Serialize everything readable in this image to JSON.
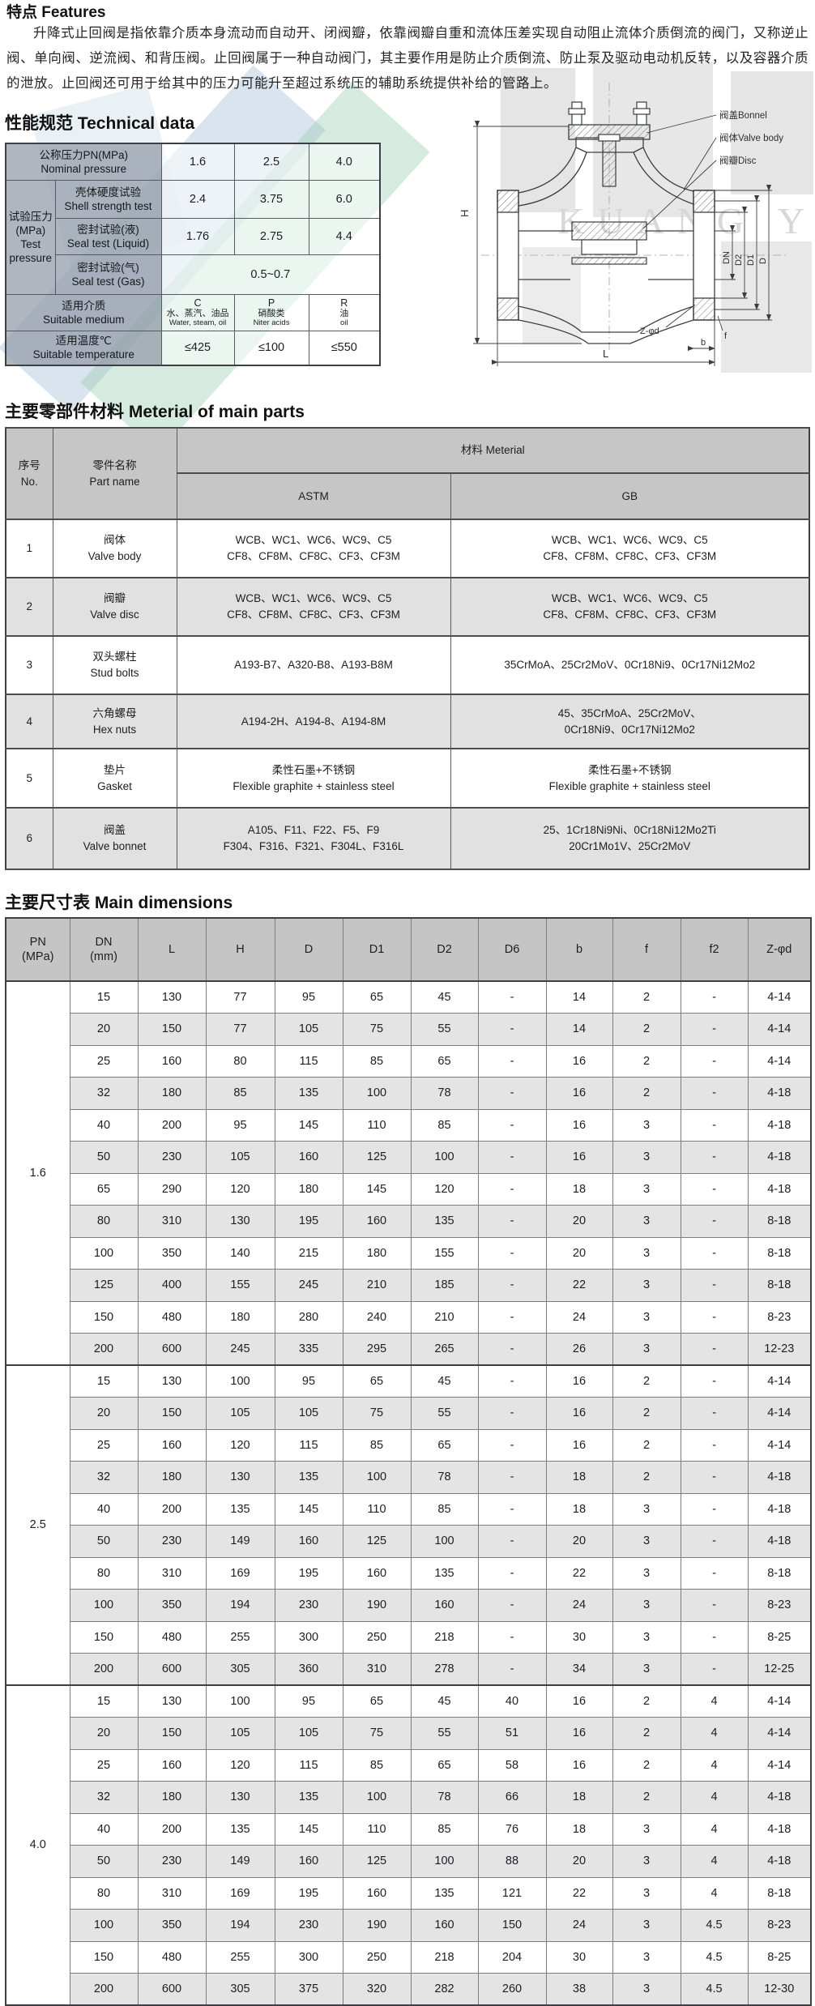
{
  "features": {
    "title": "特点 Features",
    "paragraph": "升降式止回阀是指依靠介质本身流动而自动开、闭阀瓣，依靠阀瓣自重和流体压差实现自动阻止流体介质倒流的阀门，又称逆止阀、单向阀、逆流阀、和背压阀。止回阀属于一种自动阀门，其主要作用是防止介质倒流、防止泵及驱动电动机反转，以及容器介质的泄放。止回阀还可用于给其中的压力可能升至超过系统压的辅助系统提供补给的管路上。"
  },
  "technical": {
    "title": "性能规范 Technical data",
    "nominal": {
      "label": "公称压力PN(MPa)\nNominal pressure",
      "values": [
        "1.6",
        "2.5",
        "4.0"
      ]
    },
    "test_group": {
      "label": "试验压力\n(MPa)\nTest\npressure"
    },
    "shell": {
      "label": "壳体硬度试验\nShell strength test",
      "values": [
        "2.4",
        "3.75",
        "6.0"
      ]
    },
    "liquid": {
      "label": "密封试验(液)\nSeal test (Liquid)",
      "values": [
        "1.76",
        "2.75",
        "4.4"
      ]
    },
    "gas": {
      "label": "密封试验(气)\nSeal test (Gas)",
      "value": "0.5~0.7"
    },
    "medium": {
      "label": "适用介质\nSuitable medium",
      "values": [
        {
          "code": "C",
          "zh": "水、蒸汽、油品",
          "en": "Water, steam, oil"
        },
        {
          "code": "P",
          "zh": "硝酸类",
          "en": "Niter acids"
        },
        {
          "code": "R",
          "zh": "油",
          "en": "oil"
        }
      ]
    },
    "temperature": {
      "label": "适用温度℃\nSuitable temperature",
      "values": [
        "≤425",
        "≤100",
        "≤550"
      ]
    }
  },
  "drawing": {
    "labels": {
      "bonnet": "阀盖Bonnel",
      "body": "阀体Valve body",
      "disc": "阀瓣Disc",
      "h": "H",
      "l": "L",
      "b": "b",
      "f": "f",
      "zd": "Z-φd",
      "dn": "DN",
      "d2": "D2",
      "d1": "D1",
      "d": "D"
    }
  },
  "watermark": {
    "text": "KUANG YI"
  },
  "parts": {
    "title": "主要零部件材料  Meterial of main parts",
    "headers": {
      "no": "序号\nNo.",
      "part": "零件名称\nPart name",
      "material": "材料 Meterial",
      "astm": "ASTM",
      "gb": "GB"
    },
    "rows": [
      {
        "no": "1",
        "part": [
          "阀体",
          "Valve body"
        ],
        "astm": [
          "WCB、WC1、WC6、WC9、C5",
          "CF8、CF8M、CF8C、CF3、CF3M"
        ],
        "gb": [
          "WCB、WC1、WC6、WC9、C5",
          "CF8、CF8M、CF8C、CF3、CF3M"
        ]
      },
      {
        "no": "2",
        "part": [
          "阀瓣",
          "Valve disc"
        ],
        "astm": [
          "WCB、WC1、WC6、WC9、C5",
          "CF8、CF8M、CF8C、CF3、CF3M"
        ],
        "gb": [
          "WCB、WC1、WC6、WC9、C5",
          "CF8、CF8M、CF8C、CF3、CF3M"
        ]
      },
      {
        "no": "3",
        "part": [
          "双头螺柱",
          "Stud bolts"
        ],
        "astm": [
          "A193-B7、A320-B8、A193-B8M"
        ],
        "gb": [
          "35CrMoA、25Cr2MoV、0Cr18Ni9、0Cr17Ni12Mo2"
        ]
      },
      {
        "no": "4",
        "part": [
          "六角螺母",
          "Hex nuts"
        ],
        "astm": [
          "A194-2H、A194-8、A194-8M"
        ],
        "gb": [
          "45、35CrMoA、25Cr2MoV、",
          "0Cr18Ni9、0Cr17Ni12Mo2"
        ]
      },
      {
        "no": "5",
        "part": [
          "垫片",
          "Gasket"
        ],
        "astm": [
          "柔性石墨+不锈钢",
          "Flexible graphite + stainless steel"
        ],
        "gb": [
          "柔性石墨+不锈钢",
          "Flexible graphite + stainless steel"
        ]
      },
      {
        "no": "6",
        "part": [
          "阀盖",
          "Valve bonnet"
        ],
        "astm": [
          "A105、F11、F22、F5、F9",
          "F304、F316、F321、F304L、F316L"
        ],
        "gb": [
          "25、1Cr18Ni9Ni、0Cr18Ni12Mo2Ti",
          "20Cr1Mo1V、25Cr2MoV"
        ]
      }
    ]
  },
  "dimensions": {
    "title": "主要尺寸表 Main dimensions",
    "headers": [
      [
        "PN",
        "(MPa)"
      ],
      [
        "DN",
        "(mm)"
      ],
      [
        "L"
      ],
      [
        "H"
      ],
      [
        "D"
      ],
      [
        "D1"
      ],
      [
        "D2"
      ],
      [
        "D6"
      ],
      [
        "b"
      ],
      [
        "f"
      ],
      [
        "f2"
      ],
      [
        "Z-φd"
      ]
    ],
    "groups": [
      {
        "pn": "1.6",
        "rows": [
          [
            "15",
            "130",
            "77",
            "95",
            "65",
            "45",
            "-",
            "14",
            "2",
            "-",
            "4-14"
          ],
          [
            "20",
            "150",
            "77",
            "105",
            "75",
            "55",
            "-",
            "14",
            "2",
            "-",
            "4-14"
          ],
          [
            "25",
            "160",
            "80",
            "115",
            "85",
            "65",
            "-",
            "16",
            "2",
            "-",
            "4-14"
          ],
          [
            "32",
            "180",
            "85",
            "135",
            "100",
            "78",
            "-",
            "16",
            "2",
            "-",
            "4-18"
          ],
          [
            "40",
            "200",
            "95",
            "145",
            "110",
            "85",
            "-",
            "16",
            "3",
            "-",
            "4-18"
          ],
          [
            "50",
            "230",
            "105",
            "160",
            "125",
            "100",
            "-",
            "16",
            "3",
            "-",
            "4-18"
          ],
          [
            "65",
            "290",
            "120",
            "180",
            "145",
            "120",
            "-",
            "18",
            "3",
            "-",
            "4-18"
          ],
          [
            "80",
            "310",
            "130",
            "195",
            "160",
            "135",
            "-",
            "20",
            "3",
            "-",
            "8-18"
          ],
          [
            "100",
            "350",
            "140",
            "215",
            "180",
            "155",
            "-",
            "20",
            "3",
            "-",
            "8-18"
          ],
          [
            "125",
            "400",
            "155",
            "245",
            "210",
            "185",
            "-",
            "22",
            "3",
            "-",
            "8-18"
          ],
          [
            "150",
            "480",
            "180",
            "280",
            "240",
            "210",
            "-",
            "24",
            "3",
            "-",
            "8-23"
          ],
          [
            "200",
            "600",
            "245",
            "335",
            "295",
            "265",
            "-",
            "26",
            "3",
            "-",
            "12-23"
          ]
        ]
      },
      {
        "pn": "2.5",
        "rows": [
          [
            "15",
            "130",
            "100",
            "95",
            "65",
            "45",
            "-",
            "16",
            "2",
            "-",
            "4-14"
          ],
          [
            "20",
            "150",
            "105",
            "105",
            "75",
            "55",
            "-",
            "16",
            "2",
            "-",
            "4-14"
          ],
          [
            "25",
            "160",
            "120",
            "115",
            "85",
            "65",
            "-",
            "16",
            "2",
            "-",
            "4-14"
          ],
          [
            "32",
            "180",
            "130",
            "135",
            "100",
            "78",
            "-",
            "18",
            "2",
            "-",
            "4-18"
          ],
          [
            "40",
            "200",
            "135",
            "145",
            "110",
            "85",
            "-",
            "18",
            "3",
            "-",
            "4-18"
          ],
          [
            "50",
            "230",
            "149",
            "160",
            "125",
            "100",
            "-",
            "20",
            "3",
            "-",
            "4-18"
          ],
          [
            "80",
            "310",
            "169",
            "195",
            "160",
            "135",
            "-",
            "22",
            "3",
            "-",
            "8-18"
          ],
          [
            "100",
            "350",
            "194",
            "230",
            "190",
            "160",
            "-",
            "24",
            "3",
            "-",
            "8-23"
          ],
          [
            "150",
            "480",
            "255",
            "300",
            "250",
            "218",
            "-",
            "30",
            "3",
            "-",
            "8-25"
          ],
          [
            "200",
            "600",
            "305",
            "360",
            "310",
            "278",
            "-",
            "34",
            "3",
            "-",
            "12-25"
          ]
        ]
      },
      {
        "pn": "4.0",
        "rows": [
          [
            "15",
            "130",
            "100",
            "95",
            "65",
            "45",
            "40",
            "16",
            "2",
            "4",
            "4-14"
          ],
          [
            "20",
            "150",
            "105",
            "105",
            "75",
            "55",
            "51",
            "16",
            "2",
            "4",
            "4-14"
          ],
          [
            "25",
            "160",
            "120",
            "115",
            "85",
            "65",
            "58",
            "16",
            "2",
            "4",
            "4-14"
          ],
          [
            "32",
            "180",
            "130",
            "135",
            "100",
            "78",
            "66",
            "18",
            "2",
            "4",
            "4-18"
          ],
          [
            "40",
            "200",
            "135",
            "145",
            "110",
            "85",
            "76",
            "18",
            "3",
            "4",
            "4-18"
          ],
          [
            "50",
            "230",
            "149",
            "160",
            "125",
            "100",
            "88",
            "20",
            "3",
            "4",
            "4-18"
          ],
          [
            "80",
            "310",
            "169",
            "195",
            "160",
            "135",
            "121",
            "22",
            "3",
            "4",
            "8-18"
          ],
          [
            "100",
            "350",
            "194",
            "230",
            "190",
            "160",
            "150",
            "24",
            "3",
            "4.5",
            "8-23"
          ],
          [
            "150",
            "480",
            "255",
            "300",
            "250",
            "218",
            "204",
            "30",
            "3",
            "4.5",
            "8-25"
          ],
          [
            "200",
            "600",
            "305",
            "375",
            "320",
            "282",
            "260",
            "38",
            "3",
            "4.5",
            "12-30"
          ]
        ]
      }
    ]
  }
}
